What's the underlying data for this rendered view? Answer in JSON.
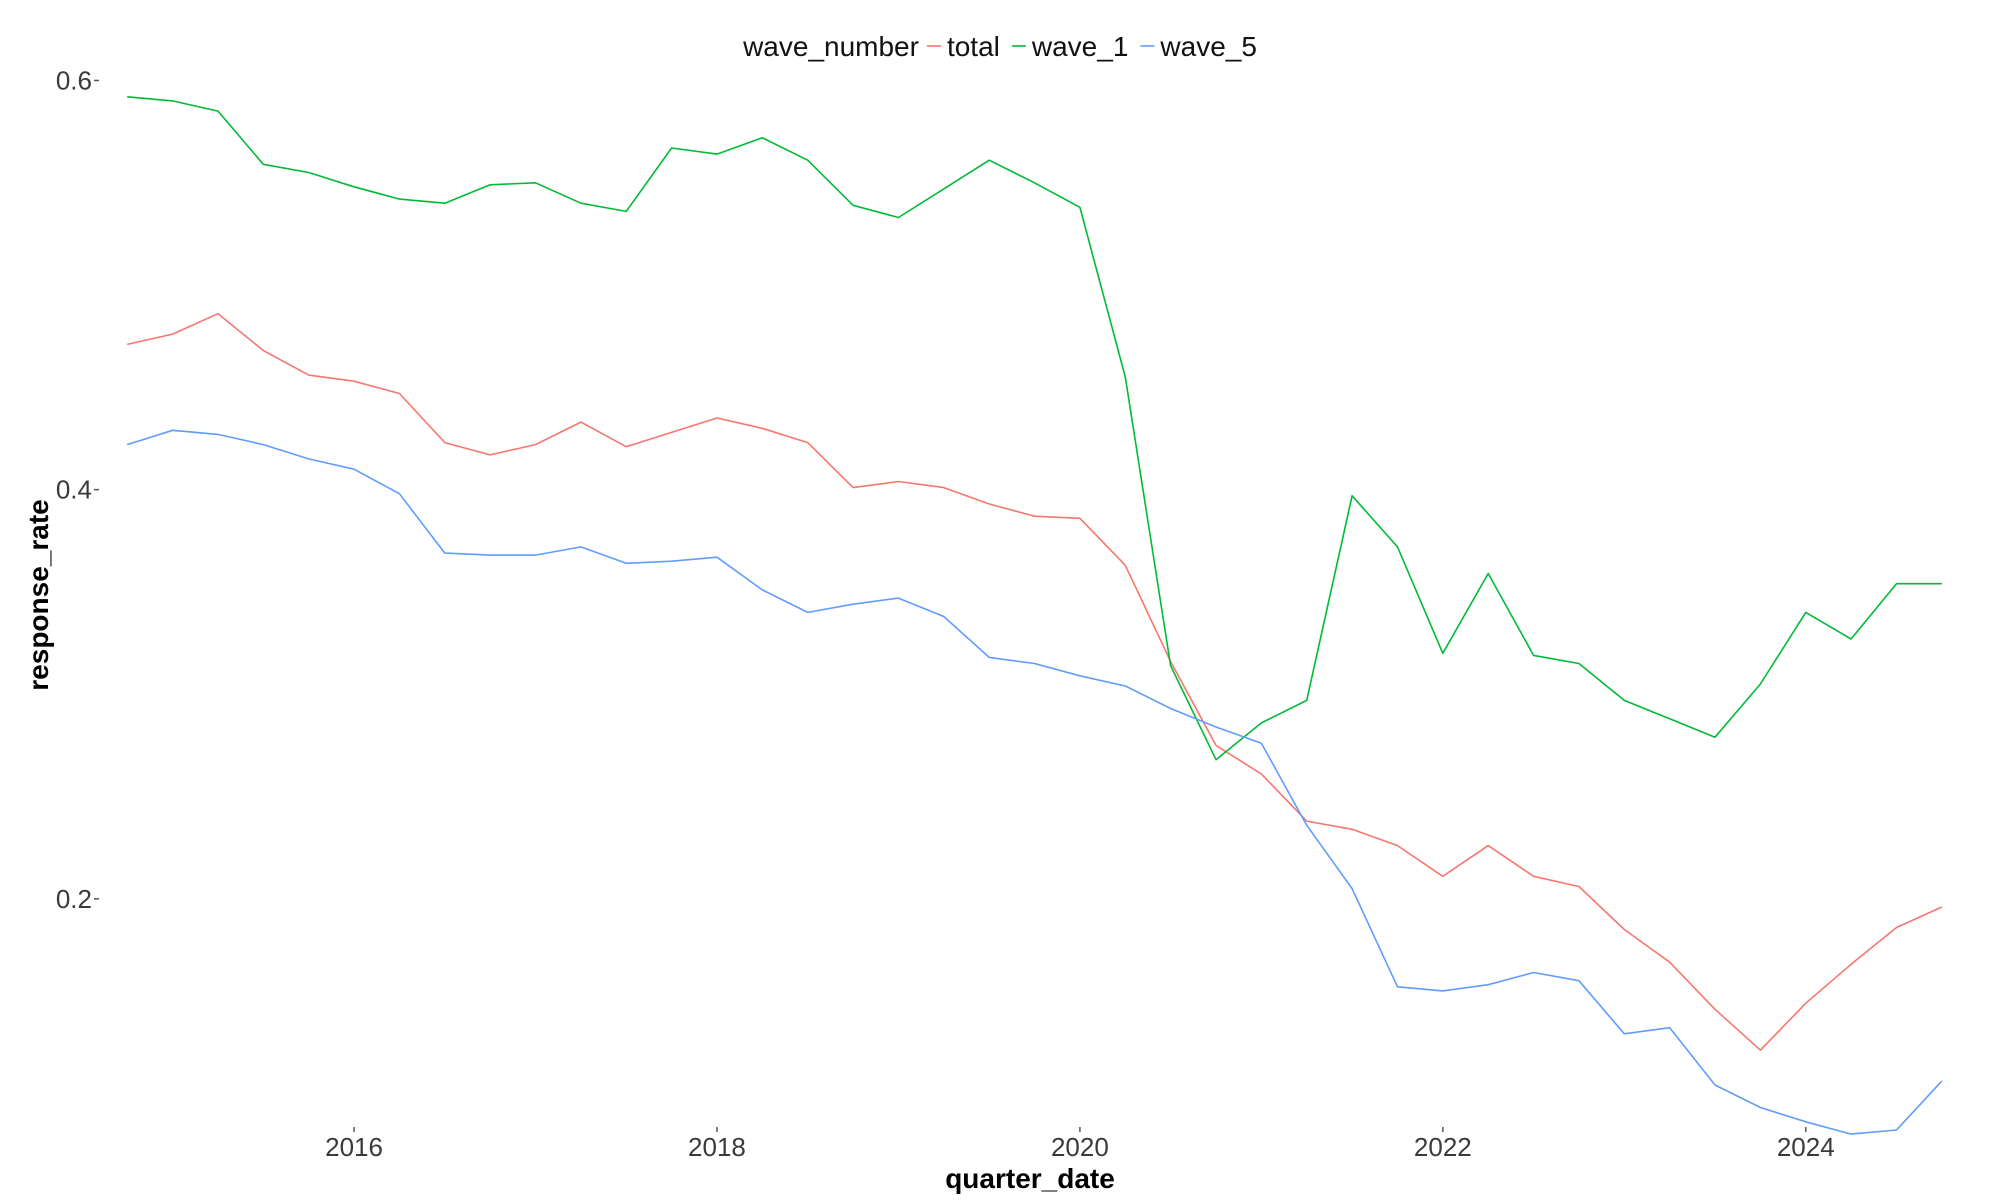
{
  "chart_data": {
    "type": "line",
    "xlabel": "quarter_date",
    "ylabel": "response_rate",
    "legend_title": "wave_number",
    "legend_position": "top",
    "grid": false,
    "xlim": [
      2014.6,
      2024.85
    ],
    "ylim": [
      0.087,
      0.61
    ],
    "x_ticks": [
      2016,
      2018,
      2020,
      2022,
      2024
    ],
    "y_ticks": [
      0.2,
      0.4,
      0.6
    ],
    "y_tick_labels": [
      "0.2",
      "0.4",
      "0.6"
    ],
    "x": [
      2014.75,
      2015.0,
      2015.25,
      2015.5,
      2015.75,
      2016.0,
      2016.25,
      2016.5,
      2016.75,
      2017.0,
      2017.25,
      2017.5,
      2017.75,
      2018.0,
      2018.25,
      2018.5,
      2018.75,
      2019.0,
      2019.25,
      2019.5,
      2019.75,
      2020.0,
      2020.25,
      2020.5,
      2020.75,
      2021.0,
      2021.25,
      2021.5,
      2021.75,
      2022.0,
      2022.25,
      2022.5,
      2022.75,
      2023.0,
      2023.25,
      2023.5,
      2023.75,
      2024.0,
      2024.25,
      2024.5,
      2024.75
    ],
    "series": [
      {
        "name": "total",
        "color": "#f8766d",
        "values": [
          0.471,
          0.476,
          0.486,
          0.468,
          0.456,
          0.453,
          0.447,
          0.423,
          0.417,
          0.422,
          0.433,
          0.421,
          0.428,
          0.435,
          0.43,
          0.423,
          0.401,
          0.404,
          0.401,
          0.393,
          0.387,
          0.386,
          0.363,
          0.316,
          0.275,
          0.261,
          0.238,
          0.234,
          0.226,
          0.211,
          0.226,
          0.211,
          0.206,
          0.185,
          0.169,
          0.146,
          0.126,
          0.149,
          0.168,
          0.186,
          0.196
        ]
      },
      {
        "name": "wave_1",
        "color": "#00ba38",
        "values": [
          0.592,
          0.59,
          0.585,
          0.559,
          0.555,
          0.548,
          0.542,
          0.54,
          0.549,
          0.55,
          0.54,
          0.536,
          0.567,
          0.564,
          0.572,
          0.561,
          0.539,
          0.533,
          0.547,
          0.561,
          0.55,
          0.538,
          0.455,
          0.314,
          0.268,
          0.286,
          0.297,
          0.397,
          0.372,
          0.32,
          0.359,
          0.319,
          0.315,
          0.297,
          0.288,
          0.279,
          0.305,
          0.34,
          0.327,
          0.354,
          0.354
        ]
      },
      {
        "name": "wave_5",
        "color": "#619cff",
        "values": [
          0.422,
          0.429,
          0.427,
          0.422,
          0.415,
          0.41,
          0.398,
          0.369,
          0.368,
          0.368,
          0.372,
          0.364,
          0.365,
          0.367,
          0.351,
          0.34,
          0.344,
          0.347,
          0.338,
          0.318,
          0.315,
          0.309,
          0.304,
          0.293,
          0.284,
          0.276,
          0.236,
          0.205,
          0.157,
          0.155,
          0.158,
          0.164,
          0.16,
          0.134,
          0.137,
          0.109,
          0.098,
          0.091,
          0.085,
          0.087,
          0.111
        ]
      }
    ]
  }
}
